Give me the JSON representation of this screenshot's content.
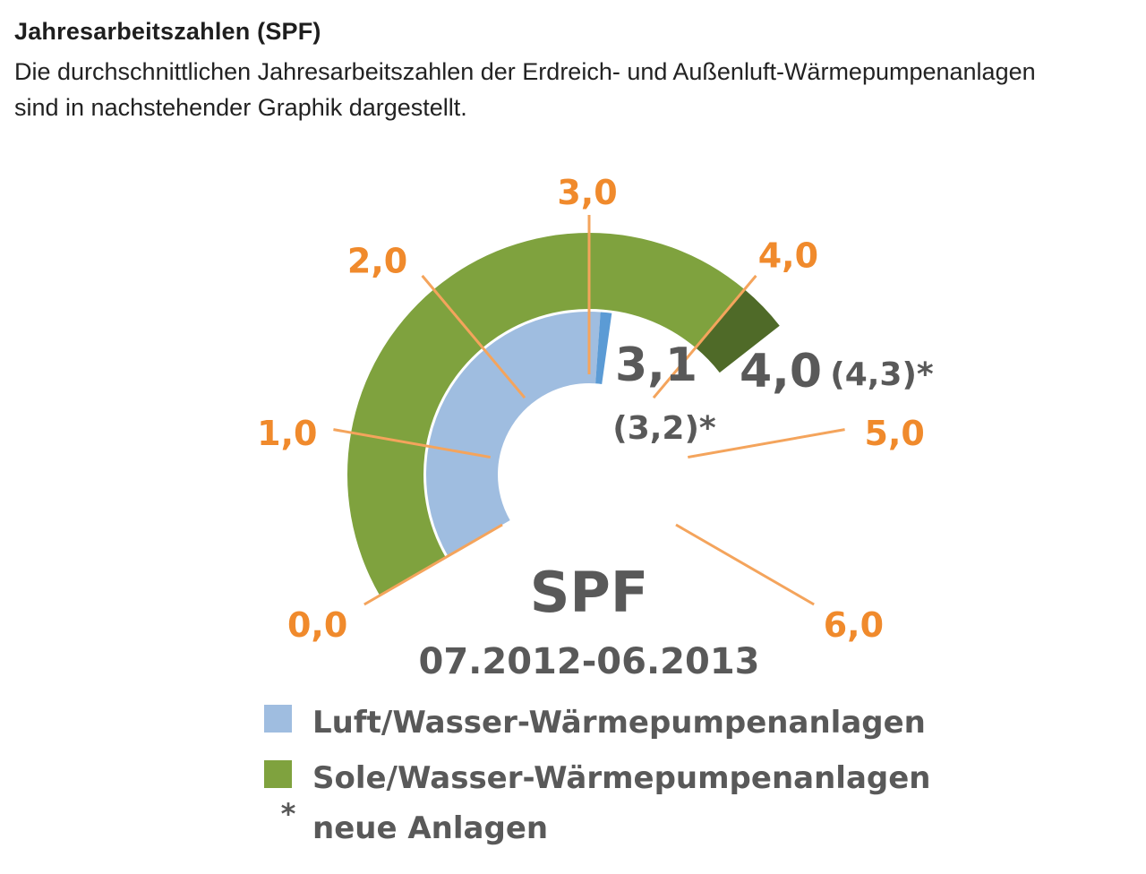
{
  "header": {
    "title": "Jahresarbeitszahlen (SPF)",
    "description": "Die durchschnittlichen Jahresarbeitszahlen der Erdreich- und Außenluft-Wärmepumpenanlagen sind in nachstehender Graphik dargestellt."
  },
  "chart_data": {
    "type": "gauge",
    "title": "SPF",
    "subtitle": "07.2012-06.2013",
    "scale": {
      "min": 0,
      "max": 6
    },
    "ticks": [
      {
        "value": 0,
        "label": "0,0"
      },
      {
        "value": 1,
        "label": "1,0"
      },
      {
        "value": 2,
        "label": "2,0"
      },
      {
        "value": 3,
        "label": "3,0"
      },
      {
        "value": 4,
        "label": "4,0"
      },
      {
        "value": 5,
        "label": "5,0"
      },
      {
        "value": 6,
        "label": "6,0"
      }
    ],
    "series": [
      {
        "name": "Luft/Wasser-Wärmepumpenanlagen",
        "value": 3.1,
        "value_new": 3.2,
        "value_label": "3,1",
        "value_new_label": "(3,2)*",
        "color": "#9fbde0",
        "marker_color": "#5b9bd5"
      },
      {
        "name": "Sole/Wasser-Wärmepumpenanlagen",
        "value": 4.0,
        "value_new": 4.3,
        "value_label": "4,0",
        "value_new_label": "(4,3)*",
        "color": "#7fa23e",
        "extension_color": "#4f6a28"
      }
    ],
    "legend": [
      {
        "symbol": "square",
        "color": "#9fbde0",
        "label": "Luft/Wasser-Wärmepumpenanlagen"
      },
      {
        "symbol": "square",
        "color": "#7fa23e",
        "label": "Sole/Wasser-Wärmepumpenanlagen"
      },
      {
        "symbol": "*",
        "label": "neue Anlagen"
      }
    ],
    "colors": {
      "tick": "#f4a45c",
      "tick_label": "#f08a2c",
      "value_text": "#595959"
    }
  }
}
